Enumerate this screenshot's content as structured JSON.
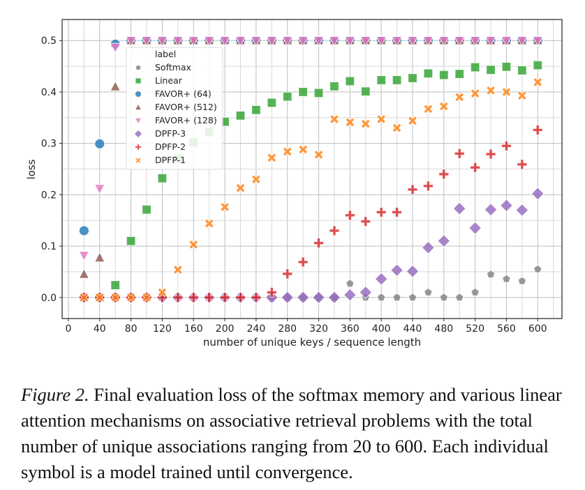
{
  "chart_data": {
    "type": "scatter",
    "xlabel": "number of unique keys / sequence length",
    "ylabel": "loss",
    "xlim": [
      -8,
      631
    ],
    "ylim": [
      -0.041,
      0.541
    ],
    "xticks": [
      0,
      40,
      80,
      120,
      160,
      200,
      240,
      280,
      320,
      360,
      400,
      440,
      480,
      520,
      560,
      600
    ],
    "yticks": [
      0.0,
      0.1,
      0.2,
      0.3,
      0.4,
      0.5
    ],
    "ytick_labels": [
      "0.0",
      "0.1",
      "0.2",
      "0.3",
      "0.4",
      "0.5"
    ],
    "grid": true,
    "legend": {
      "title": "label",
      "placement": "upper-left (inset)"
    },
    "x": [
      20,
      40,
      60,
      80,
      100,
      120,
      140,
      160,
      180,
      200,
      220,
      240,
      260,
      280,
      300,
      320,
      340,
      360,
      380,
      400,
      420,
      440,
      460,
      480,
      500,
      520,
      540,
      560,
      580,
      600
    ],
    "series": [
      {
        "name": "Softmax",
        "marker": "pentagon",
        "color": "#808080",
        "values": [
          0,
          0,
          0,
          0,
          0,
          0,
          0,
          0,
          0,
          0,
          0,
          0,
          0,
          0,
          0,
          0,
          0,
          0.027,
          0,
          0,
          0,
          0,
          0.01,
          0,
          0,
          0.01,
          0.045,
          0.036,
          0.032,
          0.055
        ]
      },
      {
        "name": "Linear",
        "marker": "square",
        "color": "#2ca02c",
        "values": [
          0,
          0,
          0.024,
          0.11,
          0.171,
          0.232,
          0.27,
          0.302,
          0.322,
          0.342,
          0.354,
          0.365,
          0.379,
          0.391,
          0.4,
          0.398,
          0.411,
          0.421,
          0.401,
          0.423,
          0.423,
          0.427,
          0.436,
          0.433,
          0.435,
          0.448,
          0.443,
          0.449,
          0.442,
          0.452
        ]
      },
      {
        "name": "FAVOR+ (64)",
        "marker": "circle",
        "color": "#1f77b4",
        "values": [
          0.13,
          0.299,
          0.493,
          0.5,
          0.5,
          0.5,
          0.5,
          0.5,
          0.5,
          0.5,
          0.5,
          0.5,
          0.5,
          0.5,
          0.5,
          0.5,
          0.5,
          0.5,
          0.5,
          0.5,
          0.5,
          0.5,
          0.5,
          0.5,
          0.5,
          0.5,
          0.5,
          0.5,
          0.5,
          0.5
        ]
      },
      {
        "name": "FAVOR+ (512)",
        "marker": "triangle-up",
        "color": "#8c564b",
        "values": [
          0.045,
          0.077,
          0.41,
          0.5,
          0.5,
          0.5,
          0.5,
          0.5,
          0.5,
          0.5,
          0.5,
          0.5,
          0.5,
          0.5,
          0.5,
          0.5,
          0.5,
          0.5,
          0.5,
          0.5,
          0.5,
          0.5,
          0.5,
          0.5,
          0.5,
          0.5,
          0.5,
          0.5,
          0.5,
          0.5
        ]
      },
      {
        "name": "FAVOR+ (128)",
        "marker": "triangle-down",
        "color": "#e377c2",
        "values": [
          0.082,
          0.212,
          0.487,
          0.5,
          0.5,
          0.5,
          0.5,
          0.5,
          0.5,
          0.5,
          0.5,
          0.5,
          0.5,
          0.5,
          0.5,
          0.5,
          0.5,
          0.5,
          0.5,
          0.5,
          0.5,
          0.5,
          0.5,
          0.5,
          0.5,
          0.5,
          0.5,
          0.5,
          0.5,
          0.5
        ]
      },
      {
        "name": "DPFP-3",
        "marker": "diamond",
        "color": "#9467bd",
        "values": [
          0,
          0,
          0,
          0,
          0,
          0,
          0,
          0,
          0,
          0,
          0,
          0,
          0,
          0,
          0,
          0,
          0,
          0.005,
          0.01,
          0.036,
          0.053,
          0.051,
          0.097,
          0.11,
          0.173,
          0.135,
          0.171,
          0.179,
          0.17,
          0.202
        ]
      },
      {
        "name": "DPFP-2",
        "marker": "plus",
        "color": "#d62728",
        "values": [
          0,
          0,
          0,
          0,
          0,
          0,
          0,
          0,
          0,
          0,
          0,
          0,
          0.01,
          0.046,
          0.069,
          0.106,
          0.13,
          0.16,
          0.148,
          0.166,
          0.166,
          0.21,
          0.217,
          0.24,
          0.28,
          0.253,
          0.279,
          0.295,
          0.259,
          0.326
        ]
      },
      {
        "name": "DPFP-1",
        "marker": "x",
        "color": "#ff7f0e",
        "values": [
          0,
          0,
          0,
          0,
          0,
          0.01,
          0.054,
          0.103,
          0.144,
          0.176,
          0.213,
          0.23,
          0.272,
          0.284,
          0.288,
          0.278,
          0.347,
          0.341,
          0.338,
          0.347,
          0.33,
          0.344,
          0.367,
          0.372,
          0.39,
          0.397,
          0.403,
          0.4,
          0.393,
          0.419
        ]
      }
    ]
  },
  "caption": {
    "label": "Figure 2.",
    "text": " Final evaluation loss of the softmax memory and various linear attention mechanisms on associative retrieval problems with the total number of unique associations ranging from 20 to 600. Each individual symbol is a model trained until convergence."
  }
}
